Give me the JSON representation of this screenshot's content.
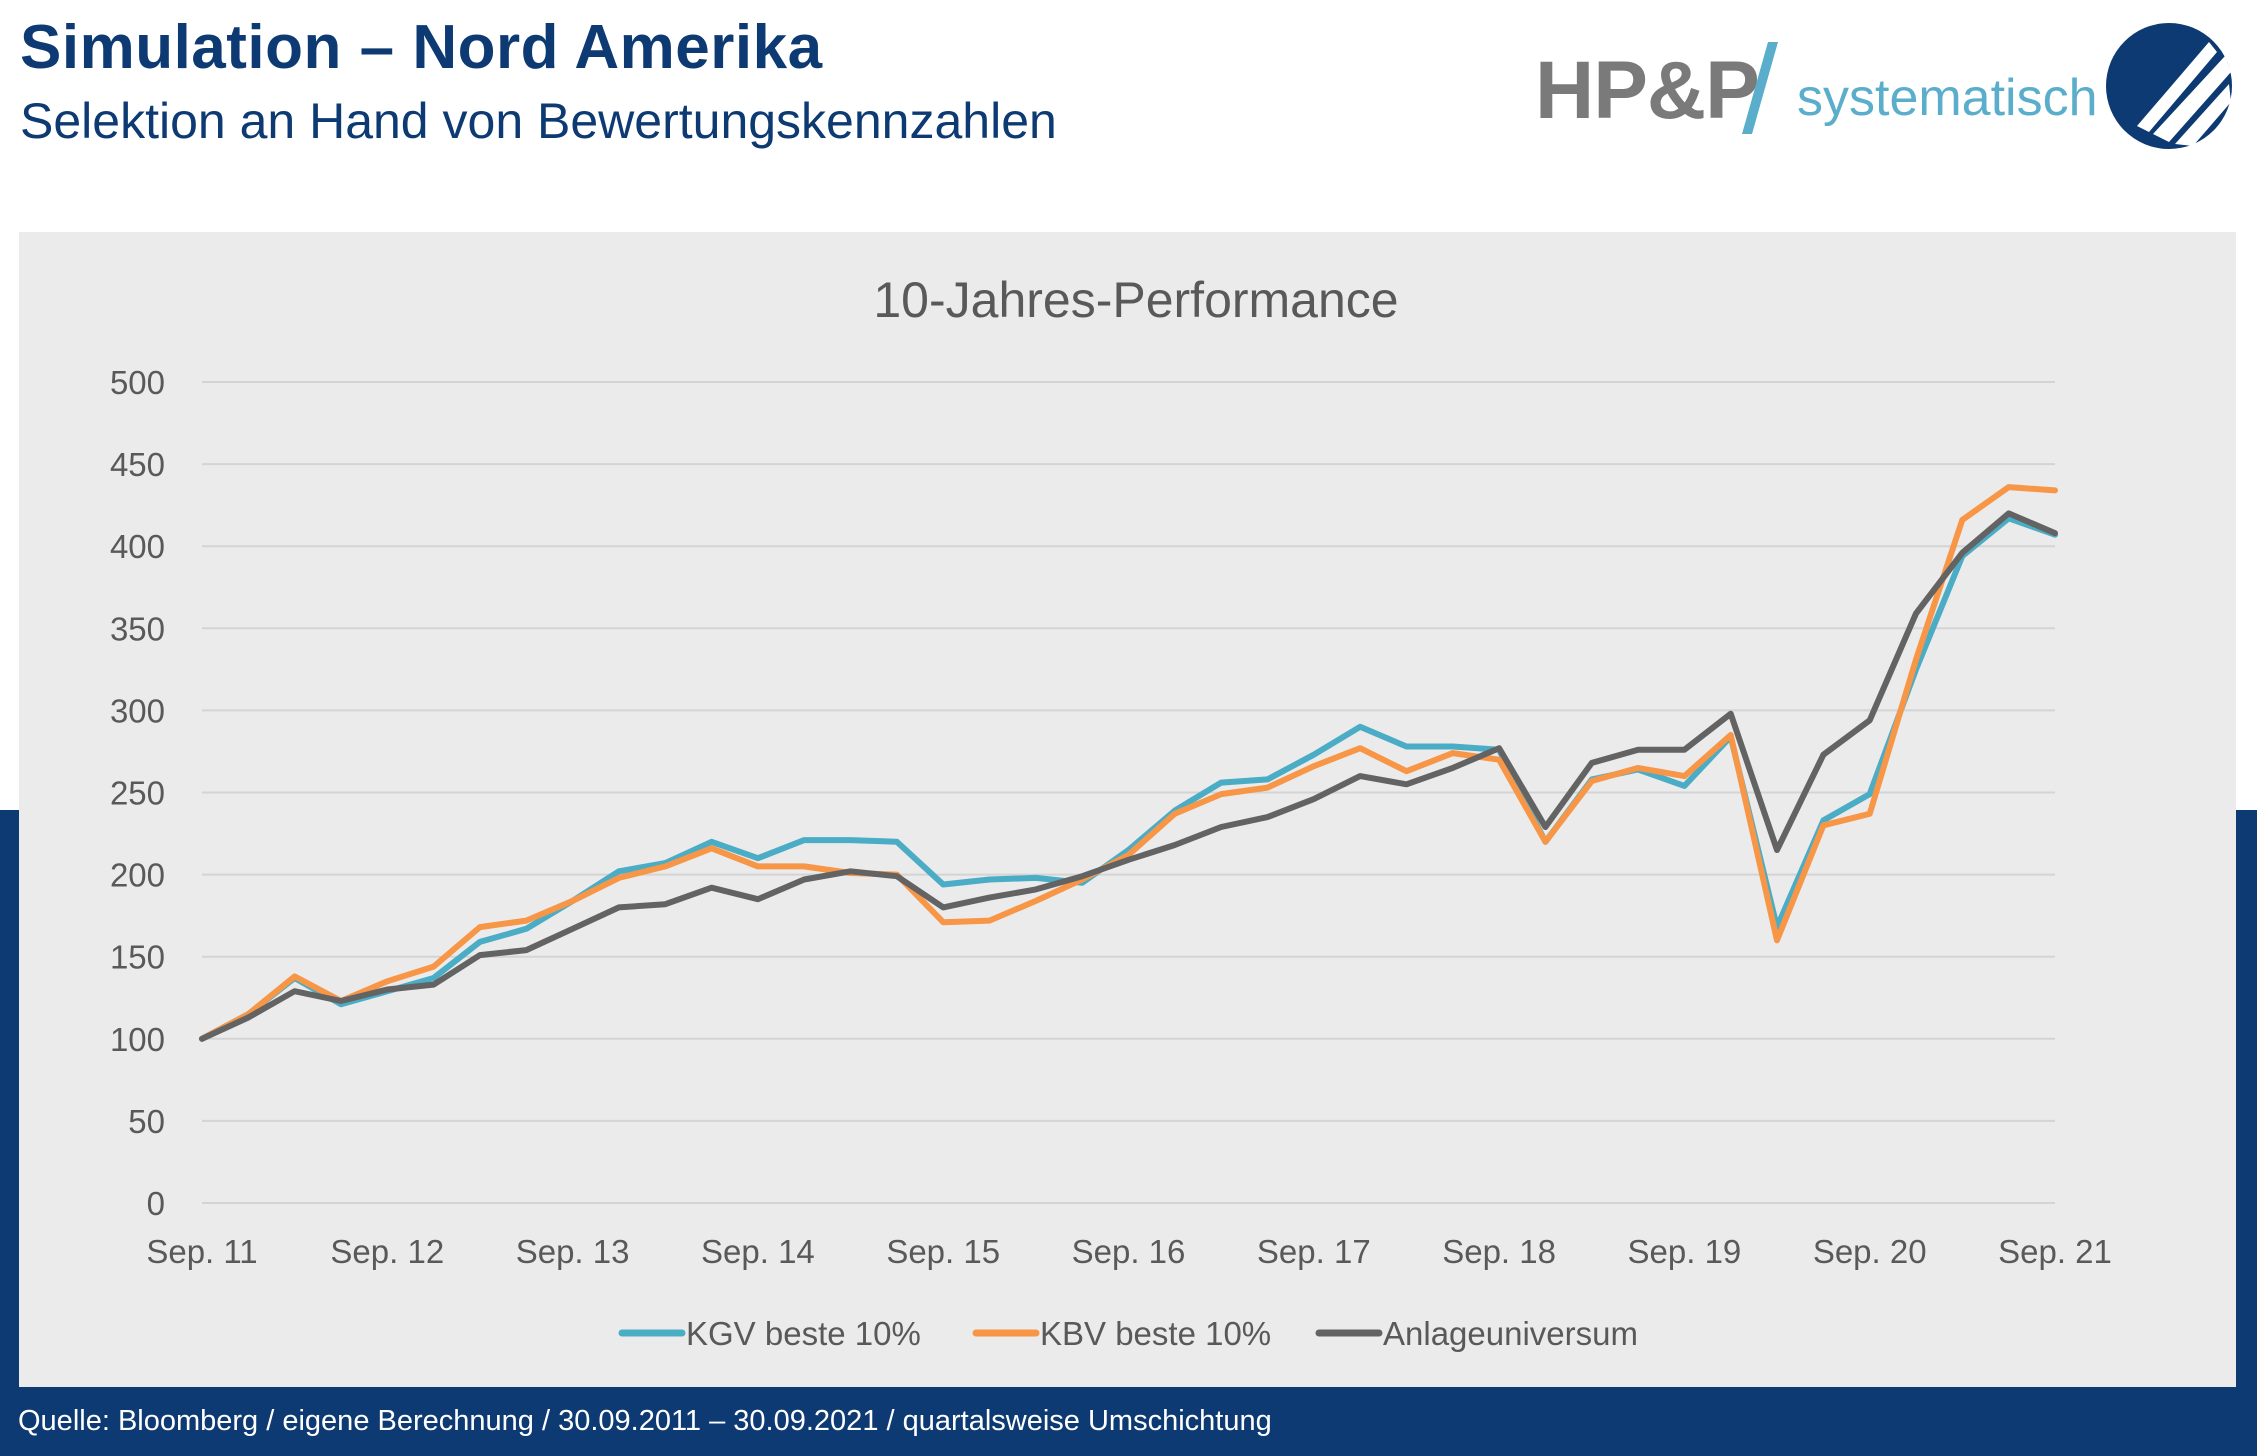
{
  "header": {
    "title": "Simulation – Nord Amerika",
    "subtitle": "Selektion an Hand von Bewertungskennzahlen"
  },
  "brand": {
    "name": "HP&P",
    "tagline": "systematisch",
    "logo_icon": "hpp-circle-logo-icon"
  },
  "colors": {
    "navy": "#0d3a73",
    "kgv": "#4bacc6",
    "kbv": "#f79646",
    "universe": "#636363",
    "panel": "#ebebeb"
  },
  "footer": {
    "source": "Quelle: Bloomberg / eigene Berechnung / 30.09.2011 – 30.09.2021 / quartalsweise Umschichtung"
  },
  "chart_data": {
    "type": "line",
    "title": "10-Jahres-Performance",
    "xlabel": "",
    "ylabel": "",
    "ylim": [
      0,
      500
    ],
    "yticks": [
      "0",
      "50",
      "100",
      "150",
      "200",
      "250",
      "300",
      "350",
      "400",
      "450",
      "500"
    ],
    "grid": true,
    "legend_position": "bottom",
    "x_tick_labels": [
      "Sep. 11",
      "Sep. 12",
      "Sep. 13",
      "Sep. 14",
      "Sep. 15",
      "Sep. 16",
      "Sep. 17",
      "Sep. 18",
      "Sep. 19",
      "Sep. 20",
      "Sep. 21"
    ],
    "x": [
      "Sep. 11",
      "Dez. 11",
      "Mär. 12",
      "Jun. 12",
      "Sep. 12",
      "Dez. 12",
      "Mär. 13",
      "Jun. 13",
      "Sep. 13",
      "Dez. 13",
      "Mär. 14",
      "Jun. 14",
      "Sep. 14",
      "Dez. 14",
      "Mär. 15",
      "Jun. 15",
      "Sep. 15",
      "Dez. 15",
      "Mär. 16",
      "Jun. 16",
      "Sep. 16",
      "Dez. 16",
      "Mär. 17",
      "Jun. 17",
      "Sep. 17",
      "Dez. 17",
      "Mär. 18",
      "Jun. 18",
      "Sep. 18",
      "Dez. 18",
      "Mär. 19",
      "Jun. 19",
      "Sep. 19",
      "Dez. 19",
      "Mär. 20",
      "Jun. 20",
      "Sep. 20",
      "Dez. 20",
      "Mär. 21",
      "Jun. 21",
      "Sep. 21"
    ],
    "series": [
      {
        "name": "KGV beste 10%",
        "color": "#4bacc6",
        "values": [
          100,
          115,
          137,
          121,
          129,
          137,
          159,
          167,
          184,
          202,
          207,
          220,
          210,
          221,
          221,
          220,
          194,
          197,
          198,
          195,
          215,
          239,
          256,
          258,
          273,
          290,
          278,
          278,
          276,
          220,
          258,
          264,
          254,
          284,
          168,
          233,
          249,
          325,
          394,
          417,
          407
        ]
      },
      {
        "name": "KBV beste 10%",
        "color": "#f79646",
        "values": [
          100,
          115,
          138,
          123,
          135,
          144,
          168,
          172,
          184,
          198,
          205,
          216,
          205,
          205,
          201,
          200,
          171,
          172,
          184,
          197,
          212,
          237,
          249,
          253,
          266,
          277,
          263,
          274,
          270,
          220,
          257,
          265,
          260,
          285,
          160,
          230,
          237,
          331,
          416,
          436,
          434
        ]
      },
      {
        "name": "Anlageuniversum",
        "color": "#636363",
        "values": [
          100,
          113,
          129,
          123,
          130,
          133,
          151,
          154,
          167,
          180,
          182,
          192,
          185,
          197,
          202,
          199,
          180,
          186,
          191,
          199,
          209,
          218,
          229,
          235,
          246,
          260,
          255,
          265,
          277,
          229,
          268,
          276,
          276,
          298,
          215,
          273,
          294,
          359,
          396,
          420,
          408
        ]
      }
    ]
  }
}
